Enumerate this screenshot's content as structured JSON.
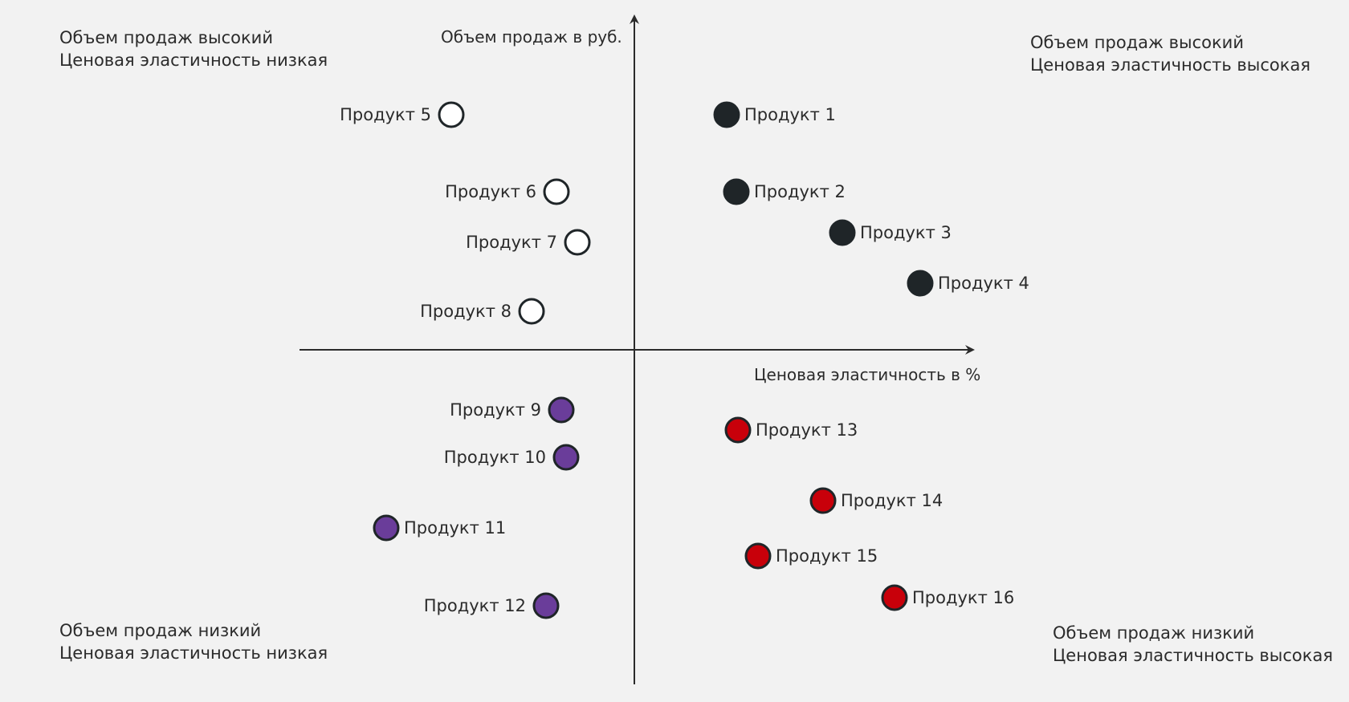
{
  "quadrants": {
    "top_left": {
      "line1": "Объем продаж высокий",
      "line2": "Ценовая эластичность низкая"
    },
    "top_right": {
      "line1": "Объем продаж высокий",
      "line2": "Ценовая эластичность высокая"
    },
    "bottom_left": {
      "line1": "Объем продаж низкий",
      "line2": "Ценовая эластичность низкая"
    },
    "bottom_right": {
      "line1": "Объем продаж низкий",
      "line2": "Ценовая эластичность высокая"
    }
  },
  "axes": {
    "y_label": "Объем продаж в руб.",
    "x_label": "Ценовая эластичность в %"
  },
  "colors": {
    "background": "#f2f2f2",
    "axis": "#2b2b2b",
    "group_top_left": "#ffffff",
    "group_top_right": "#1f2528",
    "group_bottom_left": "#6a3d9a",
    "group_bottom_right": "#c8000a"
  },
  "products": [
    {
      "label": "Продукт 1",
      "group": "top_right"
    },
    {
      "label": "Продукт 2",
      "group": "top_right"
    },
    {
      "label": "Продукт 3",
      "group": "top_right"
    },
    {
      "label": "Продукт 4",
      "group": "top_right"
    },
    {
      "label": "Продукт 5",
      "group": "top_left"
    },
    {
      "label": "Продукт 6",
      "group": "top_left"
    },
    {
      "label": "Продукт 7",
      "group": "top_left"
    },
    {
      "label": "Продукт 8",
      "group": "top_left"
    },
    {
      "label": "Продукт 9",
      "group": "bottom_left"
    },
    {
      "label": "Продукт 10",
      "group": "bottom_left"
    },
    {
      "label": "Продукт 11",
      "group": "bottom_left"
    },
    {
      "label": "Продукт 12",
      "group": "bottom_left"
    },
    {
      "label": "Продукт 13",
      "group": "bottom_right"
    },
    {
      "label": "Продукт 14",
      "group": "bottom_right"
    },
    {
      "label": "Продукт 15",
      "group": "bottom_right"
    },
    {
      "label": "Продукт 16",
      "group": "bottom_right"
    }
  ]
}
